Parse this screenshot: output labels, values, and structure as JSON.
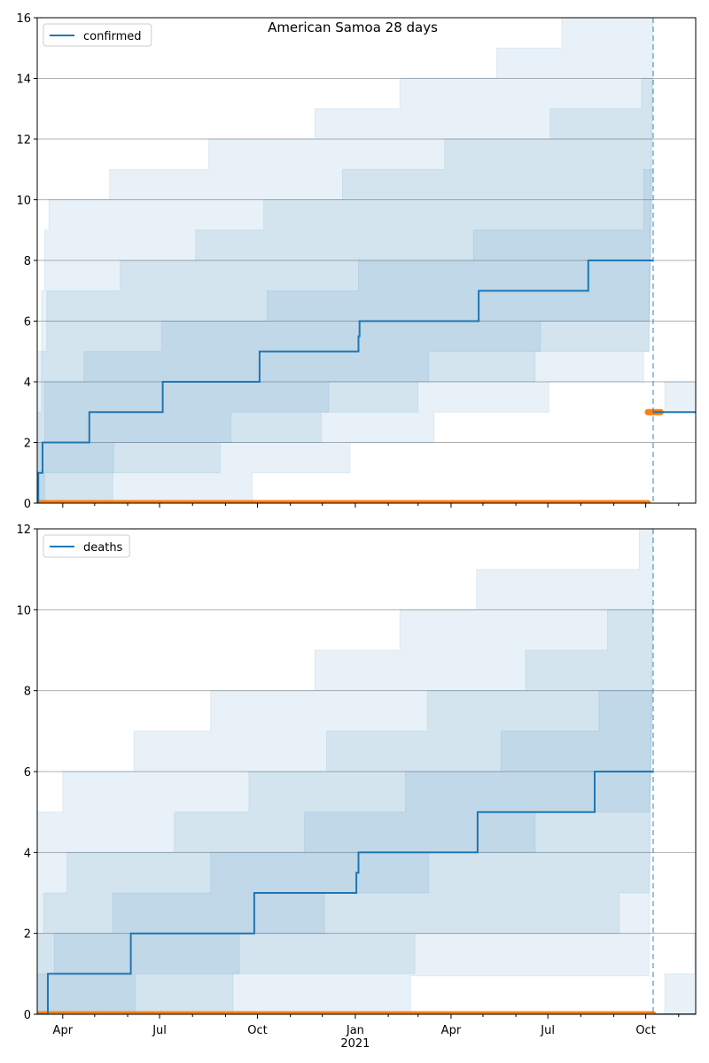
{
  "chart_data": [
    {
      "type": "line",
      "title": "American Samoa 28 days",
      "xlabel": "",
      "ylabel": "",
      "x_range": [
        "2020-03-08",
        "2021-11-17"
      ],
      "ylim": [
        0,
        16
      ],
      "yticks": [
        0,
        2,
        4,
        6,
        8,
        10,
        12,
        14,
        16
      ],
      "grid": "y",
      "legend": "top-left",
      "forecast_start": "2021-10-08",
      "series": [
        {
          "name": "confirmed",
          "color": "#1f77b4",
          "points": [
            [
              "2020-03-08",
              0
            ],
            [
              "2020-03-09",
              1
            ],
            [
              "2020-03-13",
              2
            ],
            [
              "2020-04-26",
              3
            ],
            [
              "2020-07-04",
              4
            ],
            [
              "2020-10-03",
              5
            ],
            [
              "2021-01-04",
              5.5
            ],
            [
              "2021-01-05",
              6
            ],
            [
              "2021-04-27",
              7
            ],
            [
              "2021-08-08",
              8
            ],
            [
              "2021-10-08",
              8
            ]
          ]
        },
        {
          "name": "",
          "color": "#1f77b4",
          "points": [
            [
              "2021-10-08",
              3
            ],
            [
              "2021-11-17",
              3
            ]
          ]
        }
      ],
      "bands": [
        {
          "color": "#1f77b4",
          "lower": [
            [
              "2020-03-08",
              0
            ],
            [
              "2020-03-15",
              1
            ],
            [
              "2020-05-19",
              2
            ],
            [
              "2020-09-06",
              3
            ],
            [
              "2020-12-07",
              4
            ],
            [
              "2021-03-11",
              5
            ],
            [
              "2021-06-24",
              6
            ],
            [
              "2021-10-04",
              6
            ]
          ],
          "upper": [
            [
              "2020-03-08",
              2
            ],
            [
              "2020-03-15",
              4
            ],
            [
              "2020-04-21",
              5
            ],
            [
              "2020-07-03",
              6
            ],
            [
              "2020-10-10",
              7
            ],
            [
              "2021-01-04",
              8
            ],
            [
              "2021-04-22",
              9
            ],
            [
              "2021-09-29",
              11
            ],
            [
              "2021-10-08",
              11
            ]
          ]
        },
        {
          "color": "#1f77b4",
          "lower": [
            [
              "2020-03-08",
              0
            ],
            [
              "2020-05-18",
              1
            ],
            [
              "2020-08-27",
              2
            ],
            [
              "2020-11-30",
              3
            ],
            [
              "2021-03-01",
              4
            ],
            [
              "2021-06-19",
              5
            ],
            [
              "2021-10-04",
              5.5
            ]
          ],
          "upper": [
            [
              "2020-03-08",
              3
            ],
            [
              "2020-03-12",
              5
            ],
            [
              "2020-03-17",
              7
            ],
            [
              "2020-05-25",
              8
            ],
            [
              "2020-08-04",
              9
            ],
            [
              "2020-10-07",
              10
            ],
            [
              "2020-12-20",
              11
            ],
            [
              "2021-03-26",
              12
            ],
            [
              "2021-07-03",
              13
            ],
            [
              "2021-09-27",
              14
            ],
            [
              "2021-10-08",
              14
            ]
          ]
        },
        {
          "color": "#1f77b4",
          "lower": [
            [
              "2020-03-08",
              0
            ],
            [
              "2020-09-26",
              1
            ],
            [
              "2020-12-27",
              2
            ],
            [
              "2021-03-16",
              3
            ],
            [
              "2021-07-02",
              4
            ],
            [
              "2021-09-29",
              5
            ],
            [
              "2021-10-04",
              5
            ]
          ],
          "upper": [
            [
              "2020-03-08",
              5
            ],
            [
              "2020-03-12",
              7
            ],
            [
              "2020-03-15",
              9
            ],
            [
              "2020-03-19",
              10
            ],
            [
              "2020-05-15",
              11
            ],
            [
              "2020-08-16",
              12
            ],
            [
              "2020-11-24",
              13
            ],
            [
              "2021-02-12",
              14
            ],
            [
              "2021-05-14",
              15
            ],
            [
              "2021-07-14",
              16
            ],
            [
              "2021-10-08",
              16
            ]
          ]
        },
        {
          "color": "#1f77b4",
          "lower": [
            [
              "2021-10-19",
              3
            ],
            [
              "2021-11-17",
              3
            ]
          ],
          "upper": [
            [
              "2021-10-19",
              4
            ],
            [
              "2021-11-17",
              4
            ]
          ]
        }
      ],
      "observed": [
        {
          "color": "#ff7f0e",
          "x_start": "2020-03-08",
          "x_end": "2021-10-03",
          "value": 0
        },
        {
          "color": "#ff7f0e",
          "x_start": "2021-10-03",
          "x_end": "2021-10-15",
          "value": 3
        }
      ]
    },
    {
      "type": "line",
      "title": "",
      "xlabel": "",
      "ylabel": "",
      "x_range": [
        "2020-03-08",
        "2021-11-17"
      ],
      "ylim": [
        0,
        12
      ],
      "yticks": [
        0,
        2,
        4,
        6,
        8,
        10,
        12
      ],
      "grid": "y",
      "legend": "top-left",
      "forecast_start": "2021-10-08",
      "xticks": [
        {
          "date": "2020-04-01",
          "label": "Apr"
        },
        {
          "date": "2020-07-01",
          "label": "Jul"
        },
        {
          "date": "2020-10-01",
          "label": "Oct"
        },
        {
          "date": "2021-01-01",
          "label": "Jan",
          "sublabel": "2021"
        },
        {
          "date": "2021-04-01",
          "label": "Apr"
        },
        {
          "date": "2021-07-01",
          "label": "Jul"
        },
        {
          "date": "2021-10-01",
          "label": "Oct"
        }
      ],
      "series": [
        {
          "name": "deaths",
          "color": "#1f77b4",
          "points": [
            [
              "2020-03-08",
              0
            ],
            [
              "2020-03-17",
              0
            ],
            [
              "2020-03-18",
              1
            ],
            [
              "2020-06-04",
              2
            ],
            [
              "2020-09-28",
              3
            ],
            [
              "2021-01-02",
              3.5
            ],
            [
              "2021-01-04",
              4
            ],
            [
              "2021-04-26",
              5
            ],
            [
              "2021-08-14",
              6
            ],
            [
              "2021-10-08",
              6
            ]
          ]
        },
        {
          "name": "",
          "color": "#1f77b4",
          "points": [
            [
              "2021-10-10",
              0
            ],
            [
              "2021-11-17",
              0
            ]
          ]
        }
      ],
      "bands": [
        {
          "color": "#1f77b4",
          "lower": [
            [
              "2020-03-08",
              0
            ],
            [
              "2020-06-08",
              1
            ],
            [
              "2020-09-14",
              2
            ],
            [
              "2020-12-03",
              3
            ],
            [
              "2021-03-11",
              4
            ],
            [
              "2021-06-19",
              5
            ],
            [
              "2021-10-04",
              5
            ]
          ],
          "upper": [
            [
              "2020-03-08",
              1
            ],
            [
              "2020-03-24",
              2
            ],
            [
              "2020-05-18",
              3
            ],
            [
              "2020-08-18",
              4
            ],
            [
              "2020-11-14",
              5
            ],
            [
              "2021-02-17",
              6
            ],
            [
              "2021-05-18",
              7
            ],
            [
              "2021-08-18",
              8
            ],
            [
              "2021-10-08",
              8
            ]
          ]
        },
        {
          "color": "#1f77b4",
          "lower": [
            [
              "2020-03-08",
              0
            ],
            [
              "2020-09-08",
              1
            ],
            [
              "2021-02-26",
              2
            ],
            [
              "2021-09-06",
              3
            ],
            [
              "2021-10-04",
              3
            ]
          ],
          "upper": [
            [
              "2020-03-08",
              2
            ],
            [
              "2020-03-14",
              3
            ],
            [
              "2020-04-05",
              4
            ],
            [
              "2020-07-15",
              5
            ],
            [
              "2020-09-23",
              6
            ],
            [
              "2020-12-05",
              7
            ],
            [
              "2021-03-10",
              8
            ],
            [
              "2021-06-10",
              9
            ],
            [
              "2021-08-26",
              10
            ],
            [
              "2021-10-08",
              10
            ]
          ]
        },
        {
          "color": "#1f77b4",
          "lower": [
            [
              "2020-03-08",
              0
            ],
            [
              "2021-02-22",
              0.95
            ],
            [
              "2021-10-04",
              0.95
            ]
          ],
          "upper": [
            [
              "2020-03-08",
              5
            ],
            [
              "2020-04-01",
              6
            ],
            [
              "2020-06-07",
              7
            ],
            [
              "2020-08-18",
              8
            ],
            [
              "2020-11-24",
              9
            ],
            [
              "2021-02-12",
              10
            ],
            [
              "2021-04-25",
              11
            ],
            [
              "2021-09-25",
              12
            ],
            [
              "2021-10-08",
              12
            ]
          ]
        },
        {
          "color": "#1f77b4",
          "lower": [
            [
              "2021-10-19",
              0
            ],
            [
              "2021-11-17",
              0
            ]
          ],
          "upper": [
            [
              "2021-10-19",
              1
            ],
            [
              "2021-11-15",
              1
            ],
            [
              "2021-11-16",
              2
            ],
            [
              "2021-11-17",
              2
            ]
          ]
        }
      ],
      "observed": [
        {
          "color": "#ff7f0e",
          "x_start": "2020-03-08",
          "x_end": "2021-10-08",
          "value": 0
        }
      ]
    }
  ]
}
